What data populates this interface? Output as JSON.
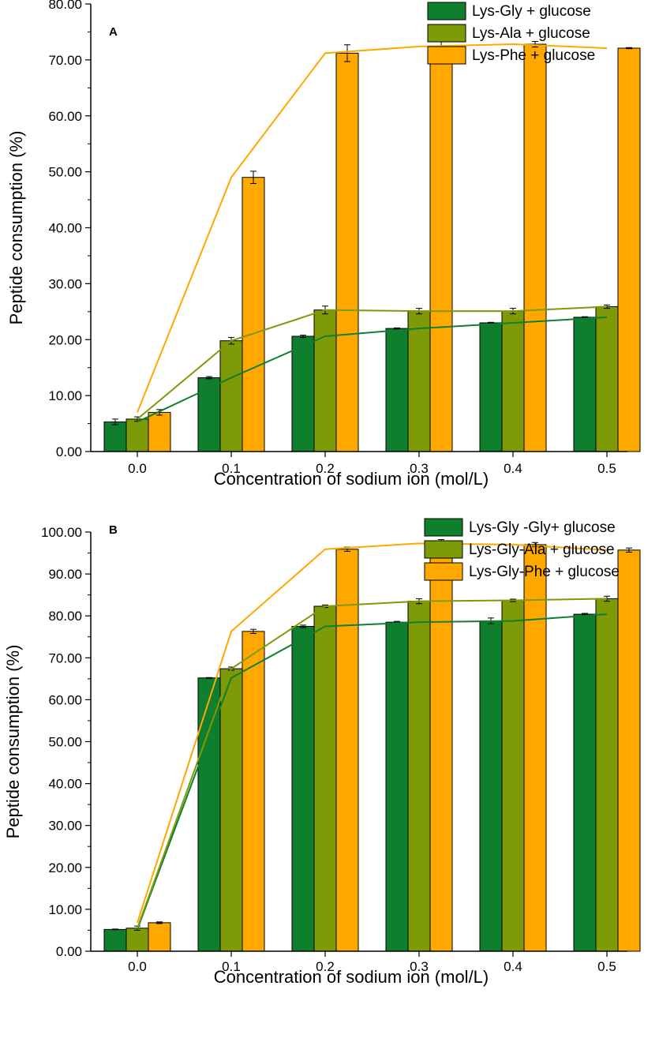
{
  "chart_data": [
    {
      "type": "bar",
      "panel_label": "A",
      "title": "",
      "xlabel": "Concentration of sodium ion (mol/L)",
      "ylabel": "Peptide consumption (%)",
      "categories": [
        "0.0",
        "0.1",
        "0.2",
        "0.3",
        "0.4",
        "0.5"
      ],
      "ylim": [
        0,
        80
      ],
      "yticks": [
        "0.00",
        "10.00",
        "20.00",
        "30.00",
        "40.00",
        "50.00",
        "60.00",
        "70.00",
        "80.00"
      ],
      "legend_position": "top-right",
      "grid": false,
      "series": [
        {
          "name": "Lys-Gly + glucose",
          "color": "#0f7f2e",
          "values": [
            5.3,
            13.2,
            20.6,
            22.0,
            23.0,
            24.0
          ],
          "errors": [
            0.5,
            0.2,
            0.2,
            0.1,
            0.1,
            0.1
          ],
          "trend": [
            5.3,
            13.2,
            20.6,
            22.0,
            23.0,
            24.0
          ]
        },
        {
          "name": "Lys-Ala + glucose",
          "color": "#7f9a07",
          "values": [
            5.8,
            19.8,
            25.3,
            25.1,
            25.1,
            25.9
          ],
          "errors": [
            0.4,
            0.6,
            0.7,
            0.5,
            0.5,
            0.3
          ],
          "trend": [
            5.8,
            19.8,
            25.3,
            25.1,
            25.1,
            25.9
          ]
        },
        {
          "name": "Lys-Phe + glucose",
          "color": "#ffa800",
          "values": [
            7.0,
            49.0,
            71.2,
            72.4,
            72.8,
            72.1
          ],
          "errors": [
            0.5,
            1.1,
            1.5,
            1.3,
            0.5,
            0.1
          ],
          "trend": [
            7.0,
            49.0,
            71.2,
            72.4,
            72.8,
            72.1
          ]
        }
      ]
    },
    {
      "type": "bar",
      "panel_label": "B",
      "title": "",
      "xlabel": "Concentration of sodium ion (mol/L)",
      "ylabel": "Peptide consumption (%)",
      "categories": [
        "0.0",
        "0.1",
        "0.2",
        "0.3",
        "0.4",
        "0.5"
      ],
      "ylim": [
        0,
        100
      ],
      "yticks": [
        "0.00",
        "10.00",
        "20.00",
        "30.00",
        "40.00",
        "50.00",
        "60.00",
        "70.00",
        "80.00",
        "90.00",
        "100.00"
      ],
      "legend_position": "top-right",
      "grid": false,
      "series": [
        {
          "name": "Lys-Gly -Gly+ glucose",
          "color": "#0f7f2e",
          "values": [
            5.2,
            65.2,
            77.5,
            78.5,
            78.8,
            80.4
          ],
          "errors": [
            0.1,
            0.1,
            0.3,
            0.2,
            0.7,
            0.2
          ],
          "trend": [
            5.2,
            65.2,
            77.5,
            78.5,
            78.8,
            80.4
          ]
        },
        {
          "name": "Lys-Gly-Ala + glucose",
          "color": "#7f9a07",
          "values": [
            5.5,
            67.4,
            82.3,
            83.5,
            83.7,
            84.1
          ],
          "errors": [
            0.5,
            0.4,
            0.3,
            0.6,
            0.3,
            0.6
          ],
          "trend": [
            5.5,
            67.4,
            82.3,
            83.5,
            83.7,
            84.1
          ]
        },
        {
          "name": "Lys-Gly-Phe + glucose",
          "color": "#ffa800",
          "values": [
            6.8,
            76.3,
            95.9,
            97.3,
            97.0,
            95.7
          ],
          "errors": [
            0.2,
            0.5,
            0.5,
            0.9,
            0.5,
            0.5
          ],
          "trend": [
            6.8,
            76.3,
            95.9,
            97.3,
            97.0,
            95.7
          ]
        }
      ]
    }
  ]
}
